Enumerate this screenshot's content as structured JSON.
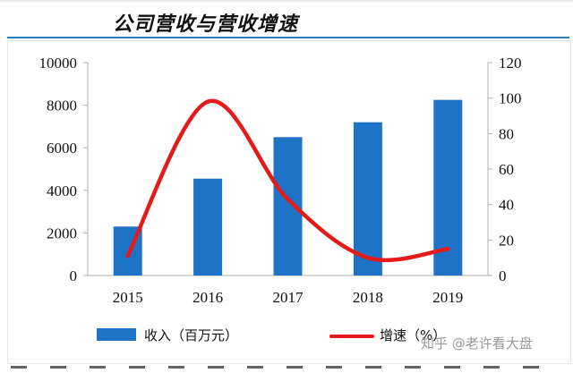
{
  "header": {
    "title": "公司营收与营收增速"
  },
  "legend": {
    "bar_label": "收入（百万元）",
    "line_label": "增速（%）"
  },
  "watermark": "知乎 @老许看大盘",
  "colors": {
    "bar": "#1f73c7",
    "line": "#e31b1b",
    "title_rule": "#2c7fb8"
  },
  "chart_data": {
    "type": "bar",
    "categories": [
      "2015",
      "2016",
      "2017",
      "2018",
      "2019"
    ],
    "series": [
      {
        "name": "收入（百万元）",
        "type": "bar",
        "axis": "left",
        "values": [
          2300,
          4550,
          6500,
          7200,
          8250
        ]
      },
      {
        "name": "增速（%）",
        "type": "line",
        "axis": "right",
        "values": [
          11,
          98,
          43,
          10,
          15
        ]
      }
    ],
    "ylim_left": [
      0,
      10000
    ],
    "yticks_left": [
      0,
      2000,
      4000,
      6000,
      8000,
      10000
    ],
    "ylim_right": [
      0,
      120
    ],
    "yticks_right": [
      0,
      20,
      40,
      60,
      80,
      100,
      120
    ],
    "grid": false,
    "legend_position": "bottom"
  }
}
